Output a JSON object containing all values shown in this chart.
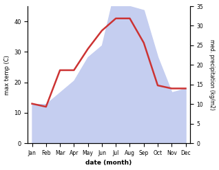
{
  "months": [
    "Jan",
    "Feb",
    "Mar",
    "Apr",
    "May",
    "Jun",
    "Jul",
    "Aug",
    "Sep",
    "Oct",
    "Nov",
    "Dec"
  ],
  "x": [
    0,
    1,
    2,
    3,
    4,
    5,
    6,
    7,
    8,
    9,
    10,
    11
  ],
  "temp": [
    13,
    12,
    24,
    24,
    31,
    37,
    41,
    41,
    33,
    19,
    18,
    18
  ],
  "precip": [
    10,
    10,
    13,
    16,
    22,
    25,
    40,
    35,
    34,
    22,
    13,
    14
  ],
  "temp_color": "#cc3333",
  "precip_fill_color": "#c5cef0",
  "temp_ylim": [
    0,
    45
  ],
  "precip_ylim": [
    0,
    35
  ],
  "temp_yticks": [
    0,
    10,
    20,
    30,
    40
  ],
  "precip_yticks": [
    0,
    5,
    10,
    15,
    20,
    25,
    30,
    35
  ],
  "xlabel": "date (month)",
  "ylabel_left": "max temp (C)",
  "ylabel_right": "med. precipitation (kg/m2)",
  "bg_color": "#ffffff",
  "line_width": 1.8
}
